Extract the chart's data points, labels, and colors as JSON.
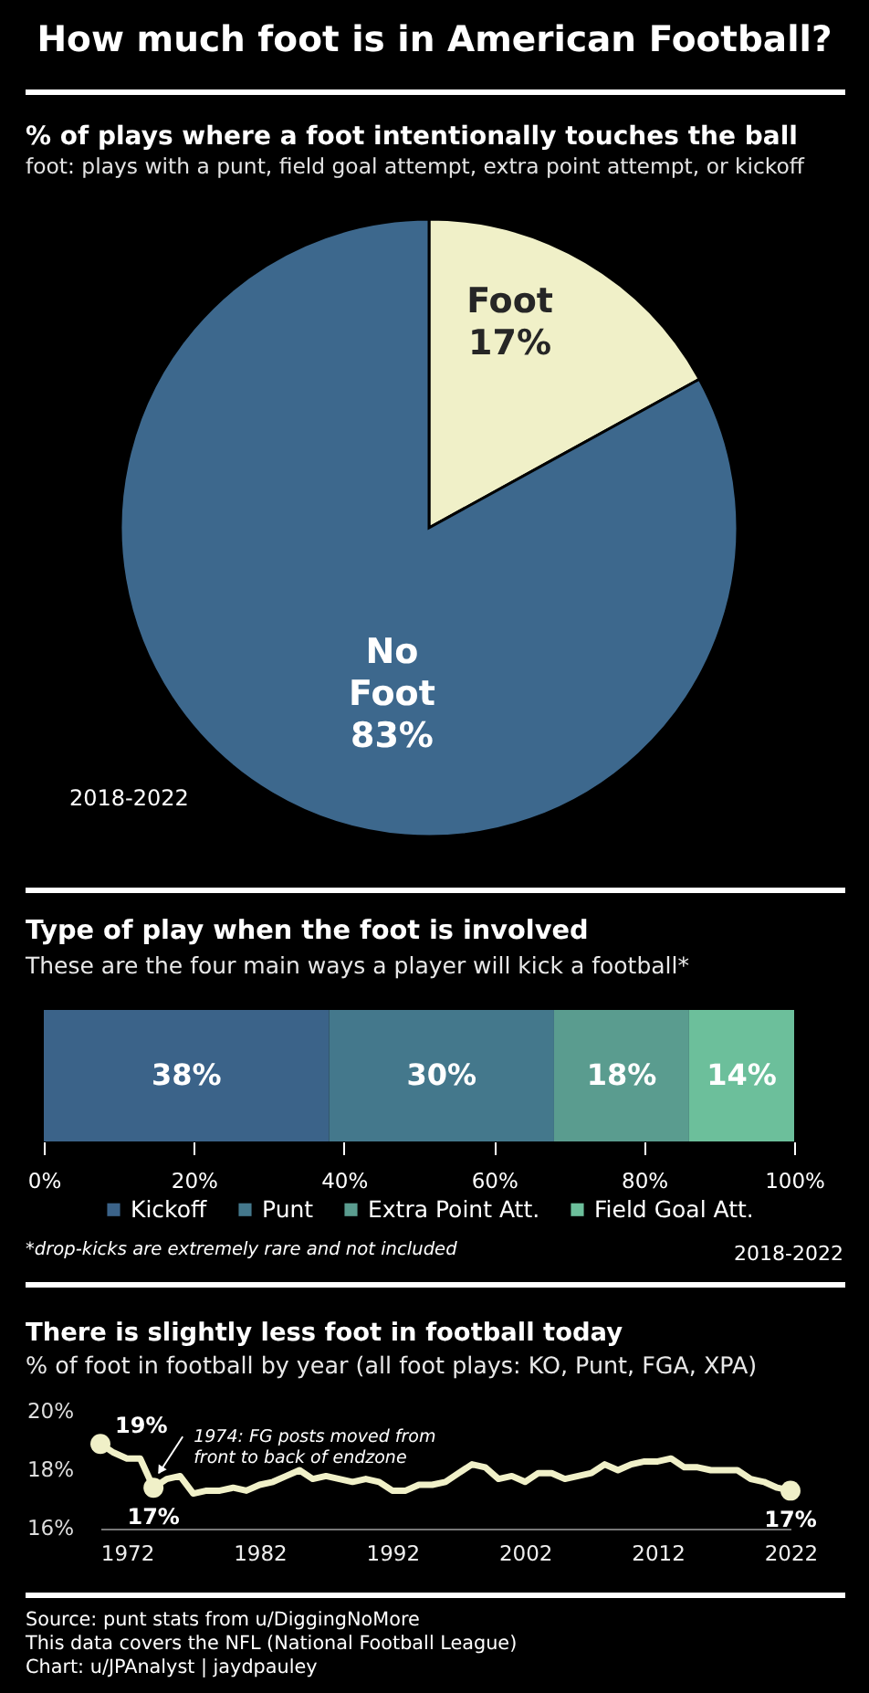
{
  "chart_data": [
    {
      "type": "pie",
      "title": "How much foot is in American Football?",
      "subtitle": "% of plays where a foot intentionally touches the ball",
      "annotations": [
        "foot: plays with a punt, field goal attempt, extra point attempt, or kickoff",
        "2018-2022"
      ],
      "categories": [
        "Foot",
        "No Foot"
      ],
      "values": [
        17,
        83
      ],
      "colors": [
        "#f0f0c8",
        "#3d688d"
      ],
      "value_labels": [
        "17%",
        "83%"
      ]
    },
    {
      "type": "bar",
      "title": "Type of play when the foot is involved",
      "subtitle": "These are the four main ways a player will kick a football*",
      "annotations": [
        "*drop-kicks are extremely rare and not included",
        "2018-2022"
      ],
      "orientation": "horizontal",
      "stacked": true,
      "categories": [
        null
      ],
      "series": [
        {
          "name": "Kickoff",
          "color": "#3b6389",
          "values": [
            38
          ],
          "value_labels": [
            "38%"
          ]
        },
        {
          "name": "Punt",
          "color": "#44788c",
          "values": [
            30
          ],
          "value_labels": [
            "30%"
          ]
        },
        {
          "name": "Extra Point Att.",
          "color": "#5a9c8f",
          "values": [
            18
          ],
          "value_labels": [
            "18%"
          ]
        },
        {
          "name": "Field Goal Att.",
          "color": "#6cbf9b",
          "values": [
            14
          ],
          "value_labels": [
            "14%"
          ]
        }
      ],
      "xlim": [
        0,
        100
      ],
      "xticks": [
        {
          "value": 0,
          "label": "0%"
        },
        {
          "value": 20,
          "label": "20%"
        },
        {
          "value": 40,
          "label": "40%"
        },
        {
          "value": 60,
          "label": "60%"
        },
        {
          "value": 80,
          "label": "80%"
        },
        {
          "value": 100,
          "label": "100%"
        }
      ],
      "legend": "bottom"
    },
    {
      "type": "line",
      "title": "There is slightly less foot in football today",
      "subtitle": "% of foot in football by year (all foot plays: KO, Punt, FGA, XPA)",
      "annotations": [
        {
          "text": "1974: FG posts moved from front to back of endzone",
          "x": 1974,
          "y": 17.4
        },
        "Source: punt stats from u/DiggingNoMore",
        "This data covers the NFL (National Football League)",
        "Chart: u/JPAnalyst | jaydpauley"
      ],
      "x": [
        1970,
        1971,
        1972,
        1973,
        1974,
        1975,
        1976,
        1977,
        1978,
        1979,
        1980,
        1981,
        1982,
        1983,
        1984,
        1985,
        1986,
        1987,
        1988,
        1989,
        1990,
        1991,
        1992,
        1993,
        1994,
        1995,
        1996,
        1997,
        1998,
        1999,
        2000,
        2001,
        2002,
        2003,
        2004,
        2005,
        2006,
        2007,
        2008,
        2009,
        2010,
        2011,
        2012,
        2013,
        2014,
        2015,
        2016,
        2017,
        2018,
        2019,
        2020,
        2021,
        2022
      ],
      "series": [
        {
          "color": "#f0f0c8",
          "values": [
            18.9,
            18.6,
            18.4,
            18.4,
            17.4,
            17.7,
            17.8,
            17.2,
            17.3,
            17.3,
            17.4,
            17.3,
            17.5,
            17.6,
            17.8,
            18.0,
            17.7,
            17.8,
            17.7,
            17.6,
            17.7,
            17.6,
            17.3,
            17.3,
            17.5,
            17.5,
            17.6,
            17.9,
            18.2,
            18.1,
            17.7,
            17.8,
            17.6,
            17.9,
            17.9,
            17.7,
            17.8,
            17.9,
            18.2,
            18.0,
            18.2,
            18.3,
            18.3,
            18.4,
            18.1,
            18.1,
            18.0,
            18.0,
            18.0,
            17.7,
            17.6,
            17.4,
            17.3
          ]
        },
        {
          "type": "scatter",
          "marker": "circle",
          "color": "#f0f0c8",
          "x": [
            1970,
            1974,
            2022
          ],
          "values": [
            18.9,
            17.4,
            17.3
          ],
          "value_labels": [
            "19%",
            "17%",
            "17%"
          ]
        }
      ],
      "xlim": [
        1970,
        2022
      ],
      "xticks": [
        1972,
        1982,
        1992,
        2002,
        2012,
        2022
      ],
      "ylim": [
        16,
        20
      ],
      "yticks": [
        {
          "value": 16,
          "label": "16%"
        },
        {
          "value": 18,
          "label": "18%"
        },
        {
          "value": 20,
          "label": "20%"
        }
      ]
    }
  ]
}
